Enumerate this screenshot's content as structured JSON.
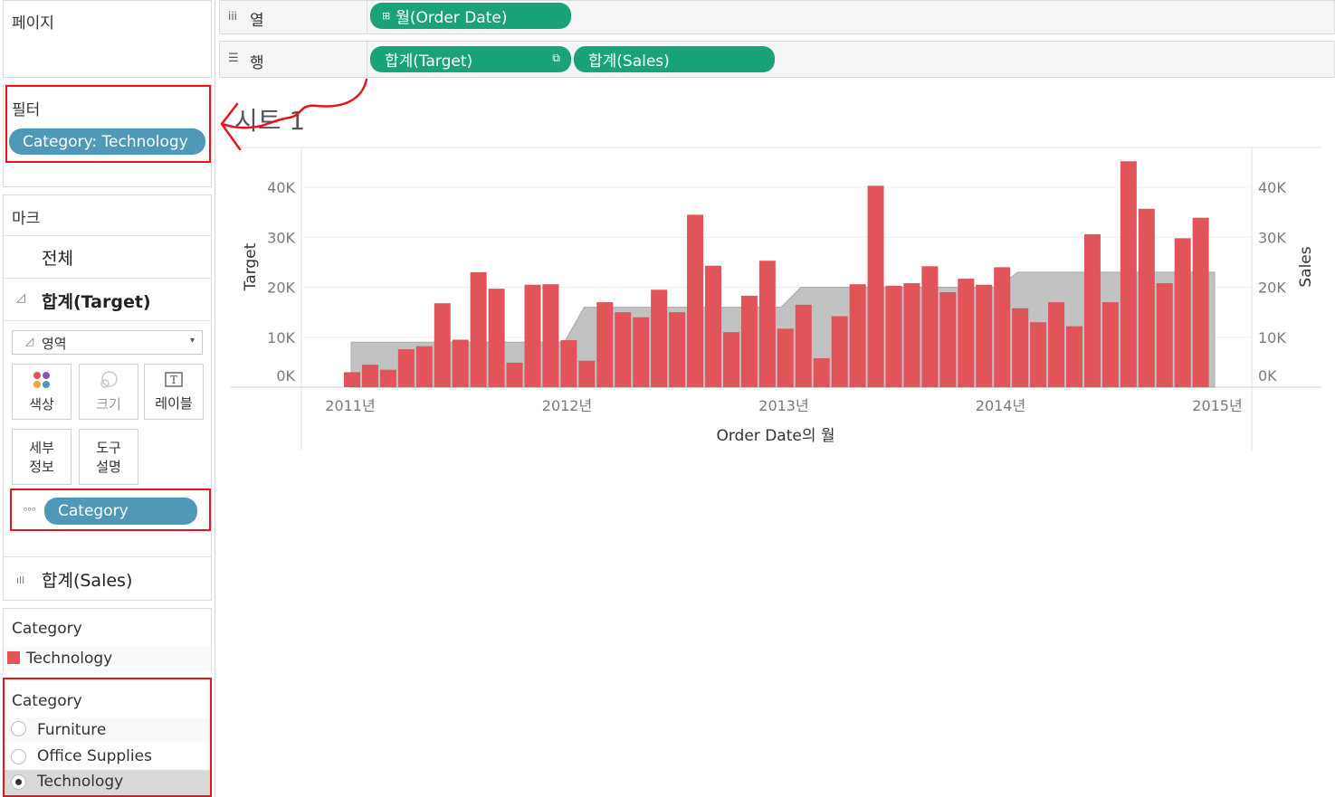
{
  "pages_panel": {
    "title": "페이지"
  },
  "filters_panel": {
    "title": "필터",
    "pill": "Category: Technology"
  },
  "marks_panel": {
    "title": "마크",
    "all_label": "전체",
    "target_label": "합계(Target)",
    "mark_type": "영역",
    "buttons": {
      "color": "색상",
      "size": "크기",
      "label": "레이블",
      "detail": [
        "세부",
        "정보"
      ],
      "tooltip": [
        "도구",
        "설명"
      ]
    },
    "detail_pill": "Category",
    "sales_label": "합계(Sales)"
  },
  "legend": {
    "title": "Category",
    "item": "Technology",
    "color": "#e0545a"
  },
  "category_filter": {
    "title": "Category",
    "options": [
      "Furniture",
      "Office Supplies",
      "Technology"
    ],
    "selected": "Technology"
  },
  "columns_shelf": {
    "label": "열",
    "pill": "월(Order Date)"
  },
  "rows_shelf": {
    "label": "행",
    "pills": [
      "합계(Target)",
      "합계(Sales)"
    ]
  },
  "sheet_title": "시트 1",
  "colors": {
    "bar": "#e0545a",
    "area": "#bfbfbf",
    "pill_green": "#1aa37a",
    "pill_blue": "#4f98b7",
    "annotation": "#e8141c"
  },
  "chart_data": {
    "type": "bar",
    "title": "시트 1",
    "xlabel": "Order Date의 월",
    "ylabel_left": "Target",
    "ylabel_right": "Sales",
    "x_ticks": [
      "2011년",
      "2012년",
      "2013년",
      "2014년",
      "2015년"
    ],
    "y_ticks": [
      "0K",
      "10K",
      "20K",
      "30K",
      "40K"
    ],
    "ylim": [
      0,
      45000
    ],
    "series": [
      {
        "name": "합계(Sales)",
        "type": "bar",
        "months": [
          "2011-01",
          "2011-02",
          "2011-03",
          "2011-04",
          "2011-05",
          "2011-06",
          "2011-07",
          "2011-08",
          "2011-09",
          "2011-10",
          "2011-11",
          "2011-12",
          "2012-01",
          "2012-02",
          "2012-03",
          "2012-04",
          "2012-05",
          "2012-06",
          "2012-07",
          "2012-08",
          "2012-09",
          "2012-10",
          "2012-11",
          "2012-12",
          "2013-01",
          "2013-02",
          "2013-03",
          "2013-04",
          "2013-05",
          "2013-06",
          "2013-07",
          "2013-08",
          "2013-09",
          "2013-10",
          "2013-11",
          "2013-12",
          "2014-01",
          "2014-02",
          "2014-03",
          "2014-04",
          "2014-05",
          "2014-06",
          "2014-07",
          "2014-08",
          "2014-09",
          "2014-10",
          "2014-11",
          "2014-12"
        ],
        "values": [
          3000,
          4500,
          3500,
          7600,
          8200,
          16800,
          9500,
          23000,
          19700,
          4900,
          20500,
          20600,
          9400,
          5300,
          17000,
          15000,
          14000,
          19500,
          15000,
          34500,
          24300,
          11000,
          18300,
          25300,
          11700,
          16500,
          5800,
          14200,
          20600,
          40300,
          20300,
          20800,
          24200,
          19000,
          21700,
          20500,
          24000,
          15800,
          13000,
          17000,
          12200,
          30600,
          17000,
          45200,
          35700,
          20800,
          29800,
          33900
        ]
      },
      {
        "name": "합계(Target)",
        "type": "area",
        "steps": [
          {
            "from": "2011-01",
            "to": "2011-12",
            "value": 9000
          },
          {
            "from": "2012-01",
            "to": "2012-12",
            "value": 16000
          },
          {
            "from": "2013-01",
            "to": "2013-12",
            "value": 20000
          },
          {
            "from": "2014-01",
            "to": "2014-12",
            "value": 23000
          }
        ]
      }
    ]
  }
}
